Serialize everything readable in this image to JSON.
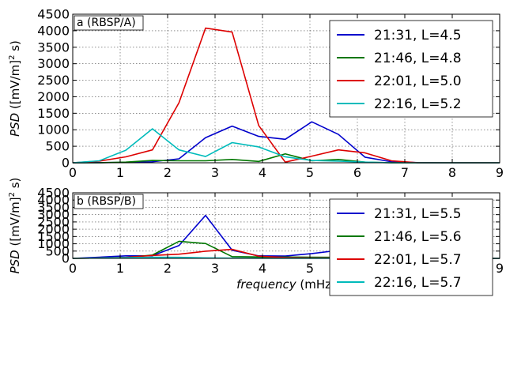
{
  "chart_data": [
    {
      "type": "line",
      "panel_label": "a (RBSP/A)",
      "ylabel": "PSD ([mV/m]² s)",
      "ylabel_main": "PSD",
      "ylabel_unit": "([mV/m]",
      "ylabel_sup": "2",
      "ylabel_tail": " s)",
      "xlabel": "",
      "xlim": [
        0,
        9
      ],
      "ylim": [
        0,
        4500
      ],
      "xticks": [
        "0",
        "1",
        "2",
        "3",
        "4",
        "5",
        "6",
        "7",
        "8",
        "9"
      ],
      "yticks": [
        "0",
        "500",
        "1000",
        "1500",
        "2000",
        "2500",
        "3000",
        "3500",
        "4000",
        "4500"
      ],
      "grid": true,
      "legend_position": "upper-right",
      "series": [
        {
          "name": "21:31, L=4.5",
          "color": "#0000cc",
          "x": [
            0,
            0.56,
            1.12,
            1.68,
            2.24,
            2.8,
            3.36,
            3.92,
            4.48,
            5.04,
            5.6,
            6.16,
            6.72,
            7.28,
            7.84,
            8.4,
            9
          ],
          "y": [
            0,
            5,
            10,
            30,
            120,
            760,
            1110,
            800,
            710,
            1240,
            860,
            170,
            30,
            5,
            0,
            0,
            0
          ]
        },
        {
          "name": "21:46, L=4.8",
          "color": "#007700",
          "x": [
            0,
            0.56,
            1.12,
            1.68,
            2.24,
            2.8,
            3.36,
            3.92,
            4.48,
            5.04,
            5.6,
            6.16,
            6.72,
            7.28,
            7.84,
            8.4,
            9
          ],
          "y": [
            0,
            0,
            20,
            70,
            60,
            60,
            100,
            40,
            270,
            60,
            100,
            20,
            0,
            0,
            0,
            0,
            0
          ]
        },
        {
          "name": "22:01, L=5.0",
          "color": "#dd0000",
          "x": [
            0,
            0.56,
            1.12,
            1.68,
            2.24,
            2.8,
            3.36,
            3.92,
            4.48,
            5.04,
            5.6,
            6.16,
            6.72,
            7.28,
            7.84,
            8.4,
            9
          ],
          "y": [
            0,
            50,
            180,
            390,
            1820,
            4080,
            3960,
            1130,
            20,
            200,
            390,
            300,
            60,
            0,
            0,
            0,
            0
          ]
        },
        {
          "name": "22:16, L=5.2",
          "color": "#00bbbb",
          "x": [
            0,
            0.56,
            1.12,
            1.68,
            2.24,
            2.8,
            3.36,
            3.92,
            4.48,
            5.04,
            5.6,
            6.16,
            6.72,
            7.28,
            7.84,
            8.4,
            9
          ],
          "y": [
            0,
            60,
            380,
            1030,
            390,
            190,
            610,
            480,
            180,
            70,
            50,
            20,
            0,
            0,
            0,
            0,
            0
          ]
        }
      ]
    },
    {
      "type": "line",
      "panel_label": "b (RBSP/B)",
      "ylabel": "PSD ([mV/m]² s)",
      "ylabel_main": "PSD",
      "ylabel_unit": "([mV/m]",
      "ylabel_sup": "2",
      "ylabel_tail": " s)",
      "xlabel": "frequency (mHz)",
      "xlabel_main": "frequency",
      "xlabel_unit": " (mHz)",
      "xlim": [
        0,
        9
      ],
      "ylim": [
        0,
        4500
      ],
      "xticks": [
        "0",
        "1",
        "2",
        "3",
        "4",
        "5",
        "6",
        "7",
        "8",
        "9"
      ],
      "yticks": [
        "0",
        "500",
        "1000",
        "1500",
        "2000",
        "2500",
        "3000",
        "3500",
        "4000",
        "4500"
      ],
      "grid": true,
      "legend_position": "upper-right",
      "series": [
        {
          "name": "21:31, L=5.5",
          "color": "#0000cc",
          "x": [
            0,
            0.56,
            1.12,
            1.68,
            2.24,
            2.8,
            3.36,
            3.92,
            4.48,
            5.04,
            5.6,
            6.16,
            6.72,
            7.28,
            7.84,
            8.4,
            9
          ],
          "y": [
            0,
            80,
            170,
            180,
            880,
            2950,
            560,
            170,
            160,
            330,
            550,
            200,
            20,
            0,
            0,
            0,
            0
          ]
        },
        {
          "name": "21:46, L=5.6",
          "color": "#007700",
          "x": [
            0,
            0.56,
            1.12,
            1.68,
            2.24,
            2.8,
            3.36,
            3.92,
            4.48,
            5.04,
            5.6,
            6.16,
            6.72,
            7.28,
            7.84,
            8.4,
            9
          ],
          "y": [
            0,
            20,
            50,
            230,
            1170,
            1020,
            120,
            100,
            90,
            80,
            70,
            70,
            0,
            0,
            0,
            0,
            0
          ]
        },
        {
          "name": "22:01, L=5.7",
          "color": "#dd0000",
          "x": [
            0,
            0.56,
            1.12,
            1.68,
            2.24,
            2.8,
            3.36,
            3.92,
            4.48,
            5.04,
            5.6,
            6.16,
            6.72,
            7.28,
            7.84,
            8.4,
            9
          ],
          "y": [
            0,
            20,
            70,
            200,
            290,
            490,
            620,
            150,
            60,
            30,
            30,
            20,
            0,
            0,
            0,
            0,
            0
          ]
        },
        {
          "name": "22:16, L=5.7",
          "color": "#00bbbb",
          "x": [
            0,
            0.56,
            1.12,
            1.68,
            2.24,
            2.8,
            3.36,
            3.92,
            4.48,
            5.04,
            5.6,
            6.16,
            6.72,
            7.28,
            7.84,
            8.4,
            9
          ],
          "y": [
            0,
            20,
            50,
            80,
            70,
            30,
            20,
            10,
            10,
            10,
            10,
            5,
            0,
            0,
            0,
            0,
            0
          ]
        }
      ]
    }
  ]
}
